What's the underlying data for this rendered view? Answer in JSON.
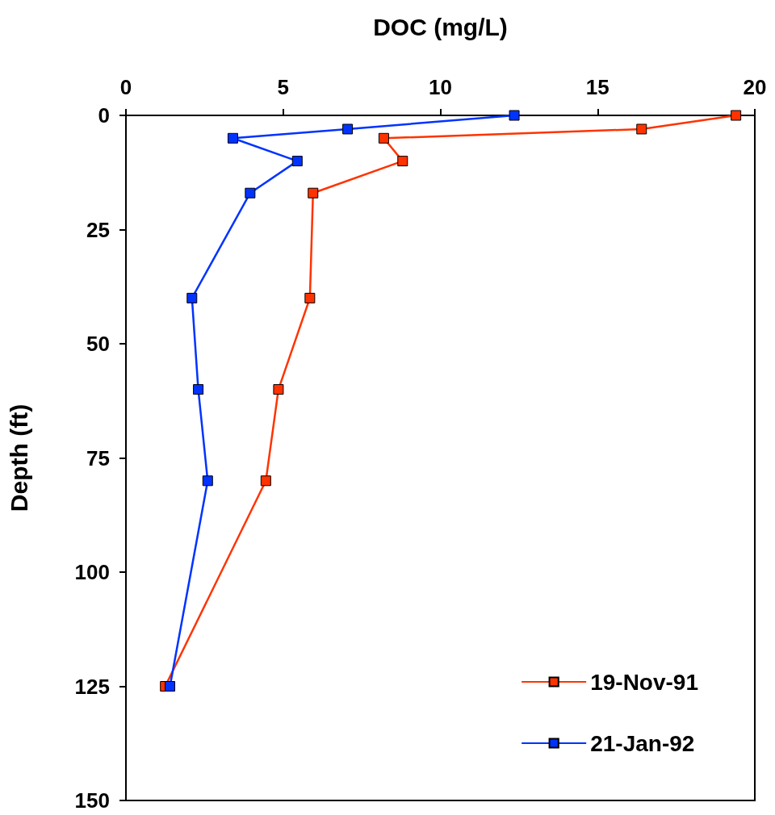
{
  "chart_data": {
    "type": "line",
    "xlabel": "DOC (mg/L)",
    "ylabel": "Depth (ft)",
    "xlim": [
      0,
      20
    ],
    "xticks": [
      0,
      5,
      10,
      15,
      20
    ],
    "ylim": [
      150,
      0
    ],
    "yticks": [
      0,
      25,
      50,
      75,
      100,
      125,
      150
    ],
    "grid": false,
    "legend": "bottom right",
    "marker": "square",
    "line_style": "solid",
    "series": [
      {
        "name": "19-Nov-91",
        "color": "#ff3300",
        "x": [
          19.4,
          16.4,
          8.2,
          8.8,
          5.95,
          5.85,
          4.85,
          4.45,
          1.25
        ],
        "values": [
          0,
          3,
          5,
          10,
          17,
          40,
          60,
          80,
          125
        ]
      },
      {
        "name": "21-Jan-92",
        "color": "#0033ff",
        "x": [
          12.35,
          7.05,
          3.4,
          5.45,
          3.95,
          2.1,
          2.3,
          2.6,
          1.4
        ],
        "values": [
          0,
          3,
          5,
          10,
          17,
          40,
          60,
          80,
          125
        ]
      }
    ]
  }
}
